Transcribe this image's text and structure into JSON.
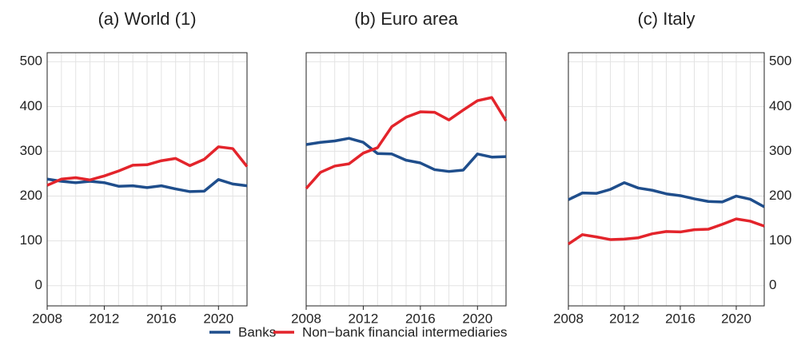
{
  "chart_data": [
    {
      "type": "line",
      "title": "(a) World (1)",
      "ytick_side": "left",
      "x": [
        2008,
        2009,
        2010,
        2011,
        2012,
        2013,
        2014,
        2015,
        2016,
        2017,
        2018,
        2019,
        2020,
        2021,
        2022
      ],
      "xlim": [
        2008,
        2022
      ],
      "xticks": [
        2008,
        2012,
        2016,
        2020
      ],
      "ylim": [
        -45,
        520
      ],
      "yticks": [
        0,
        100,
        200,
        300,
        400,
        500
      ],
      "grid": true,
      "series": [
        {
          "name": "Banks",
          "color": "#1f4e8c",
          "values": [
            238,
            233,
            230,
            233,
            230,
            222,
            223,
            219,
            223,
            216,
            210,
            211,
            237,
            227,
            223
          ]
        },
        {
          "name": "Non−bank financial intermediaries",
          "color": "#e3242b",
          "values": [
            224,
            238,
            241,
            236,
            245,
            256,
            269,
            270,
            279,
            284,
            268,
            282,
            310,
            306,
            266
          ]
        }
      ]
    },
    {
      "type": "line",
      "title": "(b) Euro area",
      "ytick_side": "none",
      "x": [
        2008,
        2009,
        2010,
        2011,
        2012,
        2013,
        2014,
        2015,
        2016,
        2017,
        2018,
        2019,
        2020,
        2021,
        2022
      ],
      "xlim": [
        2008,
        2022
      ],
      "xticks": [
        2008,
        2012,
        2016,
        2020
      ],
      "ylim": [
        -45,
        520
      ],
      "yticks": [
        0,
        100,
        200,
        300,
        400,
        500
      ],
      "grid": true,
      "series": [
        {
          "name": "Banks",
          "color": "#1f4e8c",
          "values": [
            315,
            320,
            323,
            329,
            320,
            295,
            294,
            280,
            274,
            259,
            255,
            258,
            294,
            287,
            288
          ]
        },
        {
          "name": "Non−bank financial intermediaries",
          "color": "#e3242b",
          "values": [
            217,
            253,
            267,
            272,
            296,
            308,
            355,
            376,
            388,
            387,
            370,
            392,
            413,
            420,
            368
          ]
        }
      ]
    },
    {
      "type": "line",
      "title": "(c) Italy",
      "ytick_side": "right",
      "x": [
        2008,
        2009,
        2010,
        2011,
        2012,
        2013,
        2014,
        2015,
        2016,
        2017,
        2018,
        2019,
        2020,
        2021,
        2022
      ],
      "xlim": [
        2008,
        2022
      ],
      "xticks": [
        2008,
        2012,
        2016,
        2020
      ],
      "ylim": [
        -45,
        520
      ],
      "yticks": [
        0,
        100,
        200,
        300,
        400,
        500
      ],
      "grid": true,
      "series": [
        {
          "name": "Banks",
          "color": "#1f4e8c",
          "values": [
            192,
            207,
            206,
            215,
            230,
            218,
            213,
            205,
            201,
            194,
            188,
            187,
            200,
            193,
            176
          ]
        },
        {
          "name": "Non−bank financial intermediaries",
          "color": "#e3242b",
          "values": [
            93,
            114,
            109,
            103,
            104,
            107,
            116,
            121,
            120,
            125,
            126,
            137,
            149,
            144,
            133
          ]
        }
      ]
    }
  ]
}
